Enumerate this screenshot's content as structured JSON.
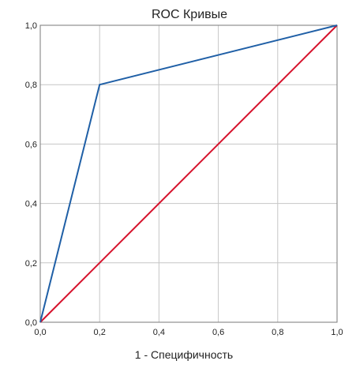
{
  "chart_data": {
    "type": "line",
    "title": "ROC Кривые",
    "xlabel": "1 - Специфичность",
    "ylabel": "",
    "xlim": [
      0,
      1
    ],
    "ylim": [
      0,
      1
    ],
    "grid": true,
    "x_ticks": [
      "0,0",
      "0,2",
      "0,4",
      "0,6",
      "0,8",
      "1,0"
    ],
    "y_ticks": [
      "0,0",
      "0,2",
      "0,4",
      "0,6",
      "0,8",
      "1,0"
    ],
    "series": [
      {
        "color": "#1f5fa6",
        "points": [
          [
            0,
            0
          ],
          [
            0.2,
            0.8
          ],
          [
            1.0,
            1.0
          ]
        ]
      },
      {
        "color": "#d6112b",
        "points": [
          [
            0,
            0
          ],
          [
            1.0,
            1.0
          ]
        ]
      }
    ]
  }
}
